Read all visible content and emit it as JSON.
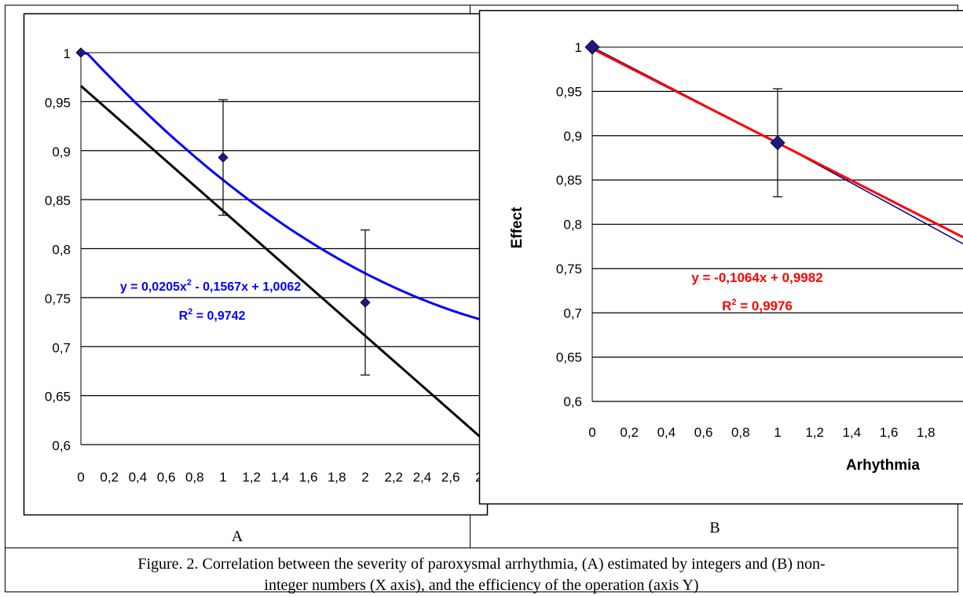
{
  "panel_a": {
    "label": "A",
    "ytick_labels": [
      "1",
      "0,95",
      "0,9",
      "0,85",
      "0,8",
      "0,75",
      "0,7",
      "0,65",
      "0,6"
    ],
    "xtick_labels": [
      "0",
      "0,2",
      "0,4",
      "0,6",
      "0,8",
      "1",
      "1,2",
      "1,4",
      "1,6",
      "1,8",
      "2",
      "2,2",
      "2,4",
      "2,6",
      "2"
    ],
    "equation": "y = 0,0205x",
    "equation_sup": "2",
    "equation_rest": " - 0,1567x + 1,0062",
    "r2_prefix": "R",
    "r2_sup": "2",
    "r2_value": " = 0,9742",
    "colors": {
      "data": "#1a1a80",
      "trend": "#0000ff",
      "linear": "#000000",
      "grid": "#000000",
      "top_grid": "#808080"
    }
  },
  "panel_b": {
    "label": "B",
    "ytick_labels": [
      "1",
      "0,95",
      "0,9",
      "0,85",
      "0,8",
      "0,75",
      "0,7",
      "0,65",
      "0,6"
    ],
    "xtick_labels": [
      "0",
      "0,2",
      "0,4",
      "0,6",
      "0,8",
      "1",
      "1,2",
      "1,4",
      "1,6",
      "1,8"
    ],
    "ylabel": "Effect",
    "xlabel": "Arhythmia",
    "equation": "y = -0,1064x + 0,9982",
    "r2_prefix": "R",
    "r2_sup": "2",
    "r2_value": " = 0,9976",
    "colors": {
      "data": "#1a1a80",
      "trend": "#ff0000",
      "series_line": "#000080",
      "grid": "#000000"
    }
  },
  "caption": {
    "line1": "Figure. 2. Correlation between the severity of paroxysmal arrhythmia, (A) estimated by integers and (B) non-",
    "line2": "integer numbers (X axis), and the efficiency of the operation (axis Y)"
  },
  "chart_data": [
    {
      "type": "scatter",
      "title": "",
      "xlabel": "",
      "ylabel": "",
      "ylim": [
        0.6,
        1.0
      ],
      "series": [
        {
          "x": [
            0,
            1,
            2
          ],
          "y": [
            1.0,
            0.893,
            0.745
          ],
          "error": [
            0,
            0.059,
            0.074
          ]
        }
      ],
      "trendlines": [
        {
          "kind": "polynomial",
          "coefficients": [
            0.0205,
            -0.1567,
            1.0062
          ],
          "r2": 0.9742
        },
        {
          "kind": "linear",
          "slope": -0.1275,
          "intercept": 0.966
        }
      ],
      "grid": true
    },
    {
      "type": "scatter",
      "title": "",
      "xlabel": "Arhythmia",
      "ylabel": "Effect",
      "ylim": [
        0.6,
        1.0
      ],
      "series": [
        {
          "x": [
            0,
            1,
            2
          ],
          "y": [
            1.0,
            0.892,
            0.778
          ],
          "error": [
            0,
            0.061,
            0
          ]
        }
      ],
      "trendlines": [
        {
          "kind": "linear",
          "slope": -0.1064,
          "intercept": 0.9982,
          "r2": 0.9976
        }
      ],
      "grid": true
    }
  ]
}
